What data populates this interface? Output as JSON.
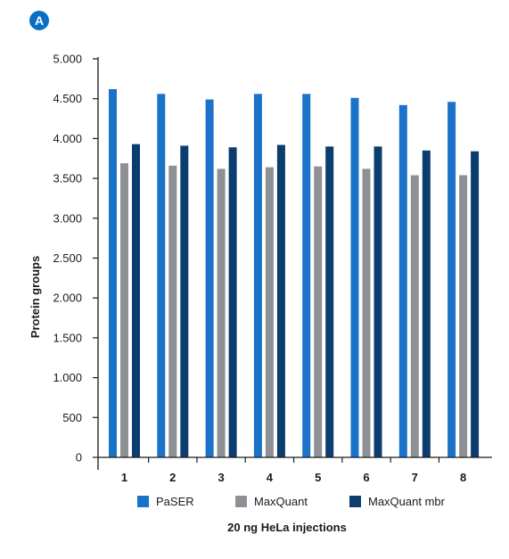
{
  "panel_label": "A",
  "colors": {
    "badge": "#0a6fc2",
    "paser": "#1a73c8",
    "maxquant": "#8d9196",
    "maxquant_mbr": "#0b3d6e",
    "axis": "#1a1a1a"
  },
  "chart_data": {
    "type": "bar",
    "title": "",
    "xlabel": "20 ng HeLa injections",
    "ylabel": "Protein groups",
    "categories": [
      "1",
      "2",
      "3",
      "4",
      "5",
      "6",
      "7",
      "8"
    ],
    "series": [
      {
        "name": "PaSER",
        "color": "#1a73c8",
        "values": [
          4620,
          4560,
          4490,
          4560,
          4560,
          4510,
          4420,
          4460
        ]
      },
      {
        "name": "MaxQuant",
        "color": "#8d9196",
        "values": [
          3690,
          3660,
          3620,
          3640,
          3650,
          3620,
          3540,
          3540
        ]
      },
      {
        "name": "MaxQuant mbr",
        "color": "#0b3d6e",
        "values": [
          3930,
          3910,
          3890,
          3920,
          3900,
          3900,
          3850,
          3840
        ]
      }
    ],
    "ylim": [
      0,
      5000
    ],
    "yticks": [
      0,
      500,
      1000,
      1500,
      2000,
      2500,
      3000,
      3500,
      4000,
      4500,
      5000
    ],
    "ytick_labels": [
      "0",
      "500",
      "1.000",
      "1.500",
      "2.000",
      "2.500",
      "3.000",
      "3.500",
      "4.000",
      "4.500",
      "5.000"
    ],
    "grid": false,
    "legend_position": "bottom"
  }
}
